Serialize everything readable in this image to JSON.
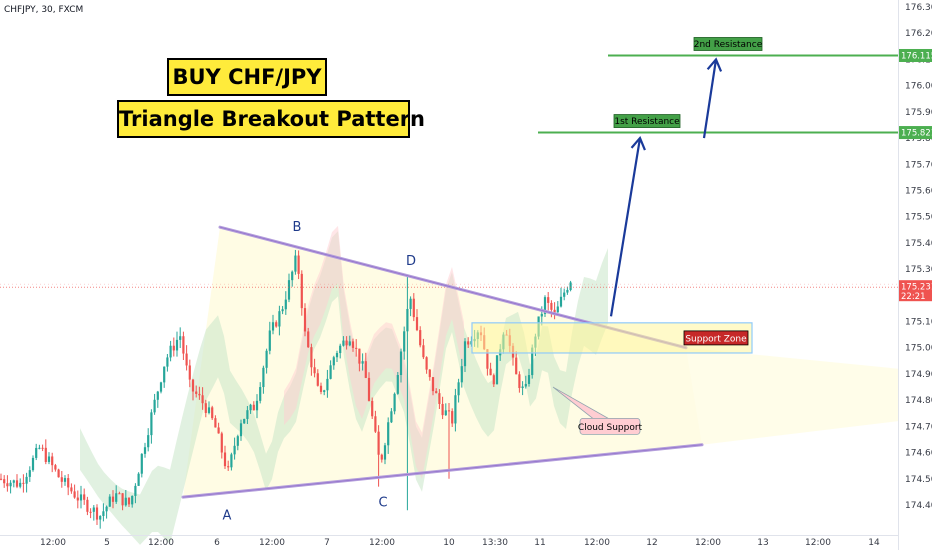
{
  "symbol": "CHFJPY, 30, FXCM",
  "titles": [
    "BUY CHF/JPY",
    "Triangle Breakout Pattern"
  ],
  "colors": {
    "bull": "#26a69a",
    "bear": "#ef5350",
    "resistance": "#4caf50",
    "trendline": "#b39ddb",
    "arrow": "#1a3a9a",
    "current": "#ef5350",
    "zone": "#fff59d",
    "cloud_green": "#c8e6c9",
    "cloud_red": "#ffcdd2"
  },
  "chart_data": {
    "type": "candlestick",
    "y_axis": {
      "position": "right",
      "range": [
        174.35,
        176.34
      ],
      "ticks": [
        176.3,
        176.2,
        176.1,
        176.0,
        175.9,
        175.8,
        175.7,
        175.6,
        175.5,
        175.4,
        175.3,
        175.2,
        175.1,
        175.0,
        174.9,
        174.8,
        174.7,
        174.6,
        174.5,
        174.4
      ],
      "tick_labels": [
        "176.300",
        "176.200",
        "176.100",
        "176.000",
        "175.900",
        "175.800",
        "175.700",
        "175.600",
        "175.500",
        "175.400",
        "175.300",
        "175.200",
        "175.100",
        "175.000",
        "174.900",
        "174.800",
        "174.700",
        "174.600",
        "174.500",
        "174.400"
      ]
    },
    "x_axis": {
      "range": [
        0,
        900
      ],
      "ticks": [
        {
          "x": 53,
          "label": "12:00"
        },
        {
          "x": 107,
          "label": "5"
        },
        {
          "x": 161,
          "label": "12:00"
        },
        {
          "x": 217,
          "label": "6"
        },
        {
          "x": 272,
          "label": "12:00"
        },
        {
          "x": 327,
          "label": "7"
        },
        {
          "x": 382,
          "label": "12:00"
        },
        {
          "x": 449,
          "label": "10"
        },
        {
          "x": 495,
          "label": "13:30"
        },
        {
          "x": 540,
          "label": "11"
        },
        {
          "x": 597,
          "label": "12:00"
        },
        {
          "x": 652,
          "label": "12"
        },
        {
          "x": 708,
          "label": "12:00"
        },
        {
          "x": 763,
          "label": "13"
        },
        {
          "x": 818,
          "label": "12:00"
        },
        {
          "x": 874,
          "label": "14"
        }
      ]
    },
    "anchors": [
      {
        "x": 0,
        "p": 174.5
      },
      {
        "x": 20,
        "p": 174.48
      },
      {
        "x": 40,
        "p": 174.62
      },
      {
        "x": 60,
        "p": 174.5
      },
      {
        "x": 80,
        "p": 174.42
      },
      {
        "x": 100,
        "p": 174.36
      },
      {
        "x": 115,
        "p": 174.44
      },
      {
        "x": 130,
        "p": 174.4
      },
      {
        "x": 150,
        "p": 174.72
      },
      {
        "x": 165,
        "p": 174.95
      },
      {
        "x": 180,
        "p": 175.05
      },
      {
        "x": 190,
        "p": 174.85
      },
      {
        "x": 205,
        "p": 174.78
      },
      {
        "x": 215,
        "p": 174.7
      },
      {
        "x": 228,
        "p": 174.52
      },
      {
        "x": 240,
        "p": 174.72
      },
      {
        "x": 255,
        "p": 174.78
      },
      {
        "x": 270,
        "p": 175.05
      },
      {
        "x": 282,
        "p": 175.15
      },
      {
        "x": 297,
        "p": 175.35
      },
      {
        "x": 305,
        "p": 175.05
      },
      {
        "x": 320,
        "p": 174.8
      },
      {
        "x": 335,
        "p": 174.98
      },
      {
        "x": 350,
        "p": 175.05
      },
      {
        "x": 365,
        "p": 174.9
      },
      {
        "x": 380,
        "p": 174.55
      },
      {
        "x": 395,
        "p": 174.85
      },
      {
        "x": 410,
        "p": 175.2
      },
      {
        "x": 425,
        "p": 174.92
      },
      {
        "x": 440,
        "p": 174.78
      },
      {
        "x": 452,
        "p": 174.72
      },
      {
        "x": 465,
        "p": 175.02
      },
      {
        "x": 480,
        "p": 175.08
      },
      {
        "x": 492,
        "p": 174.85
      },
      {
        "x": 505,
        "p": 175.1
      },
      {
        "x": 515,
        "p": 174.9
      },
      {
        "x": 525,
        "p": 174.82
      },
      {
        "x": 535,
        "p": 175.05
      },
      {
        "x": 545,
        "p": 175.18
      },
      {
        "x": 555,
        "p": 175.12
      },
      {
        "x": 565,
        "p": 175.22
      },
      {
        "x": 573,
        "p": 175.28
      }
    ],
    "spikes": [
      {
        "x": 408,
        "p": 175.27
      },
      {
        "x": 408,
        "p": 174.38
      },
      {
        "x": 296,
        "p": 175.37
      },
      {
        "x": 380,
        "p": 174.47
      },
      {
        "x": 450,
        "p": 174.5
      }
    ],
    "current": {
      "price": 175.231,
      "label": "175.231",
      "countdown": "22:21"
    },
    "resistance_levels": [
      {
        "name": "1st Resistance",
        "price": 175.821,
        "label": "175.821",
        "x_start": 538
      },
      {
        "name": "2nd Resistance",
        "price": 176.115,
        "label": "176.115",
        "x_start": 608
      }
    ],
    "trendlines": [
      {
        "name": "upper",
        "x1": 220,
        "p1": 175.46,
        "x2": 686,
        "p2": 175.0
      },
      {
        "name": "lower",
        "x1": 183,
        "p1": 174.43,
        "x2": 702,
        "p2": 174.63
      }
    ],
    "support_zone": {
      "label": "Support Zone",
      "x1": 472,
      "x2": 752,
      "p_top": 175.095,
      "p_bottom": 174.98
    },
    "cloud_callout": {
      "label": "Cloud Support",
      "anchor_x": 553,
      "anchor_p": 174.85,
      "box_x": 580,
      "box_p": 174.7
    },
    "points": [
      {
        "label": "A",
        "x": 227,
        "p": 174.36
      },
      {
        "label": "B",
        "x": 297,
        "p": 175.46
      },
      {
        "label": "C",
        "x": 383,
        "p": 174.41
      },
      {
        "label": "D",
        "x": 411,
        "p": 175.33
      }
    ],
    "arrows": [
      {
        "x1": 611,
        "p1": 175.12,
        "x2": 640,
        "p2": 175.8
      },
      {
        "x1": 704,
        "p1": 175.8,
        "x2": 716,
        "p2": 176.1
      }
    ]
  }
}
